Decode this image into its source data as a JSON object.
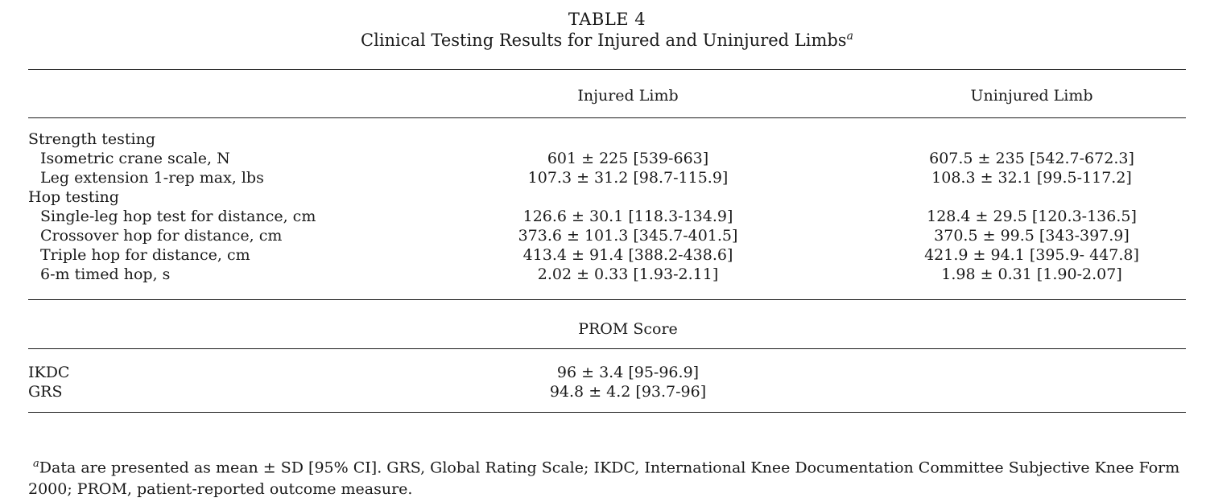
{
  "caption": {
    "table_number": "TABLE 4",
    "title": "Clinical Testing Results for Injured and Uninjured Limbs",
    "footnote_marker": "a"
  },
  "columns": {
    "injured": "Injured Limb",
    "uninjured": "Uninjured Limb"
  },
  "strength": {
    "heading": "Strength testing",
    "rows": [
      {
        "label": "Isometric crane scale, N",
        "injured": "601 ± 225 [539-663]",
        "uninjured": "607.5 ± 235 [542.7-672.3]"
      },
      {
        "label": "Leg extension 1-rep max, lbs",
        "injured": "107.3 ± 31.2 [98.7-115.9]",
        "uninjured": "108.3 ± 32.1 [99.5-117.2]"
      }
    ]
  },
  "hop": {
    "heading": "Hop testing",
    "rows": [
      {
        "label": "Single-leg hop test for distance, cm",
        "injured": "126.6 ± 30.1 [118.3-134.9]",
        "uninjured": "128.4 ± 29.5 [120.3-136.5]"
      },
      {
        "label": "Crossover hop for distance, cm",
        "injured": "373.6 ± 101.3 [345.7-401.5]",
        "uninjured": "370.5 ± 99.5 [343-397.9]"
      },
      {
        "label": "Triple hop for distance, cm",
        "injured": "413.4 ± 91.4 [388.2-438.6]",
        "uninjured": "421.9 ± 94.1 [395.9- 447.8]"
      },
      {
        "label": "6-m timed hop, s",
        "injured": "2.02 ± 0.33 [1.93-2.11]",
        "uninjured": "1.98 ± 0.31 [1.90-2.07]"
      }
    ]
  },
  "prom": {
    "heading": "PROM Score",
    "rows": [
      {
        "label": "IKDC",
        "value": "96 ± 3.4 [95-96.9]"
      },
      {
        "label": "GRS",
        "value": "94.8 ± 4.2 [93.7-96]"
      }
    ]
  },
  "footnote": {
    "marker": "a",
    "text": "Data are presented as mean ± SD [95% CI]. GRS, Global Rating Scale; IKDC, International Knee Documentation Committee Subjective Knee Form 2000; PROM, patient-reported outcome measure."
  }
}
